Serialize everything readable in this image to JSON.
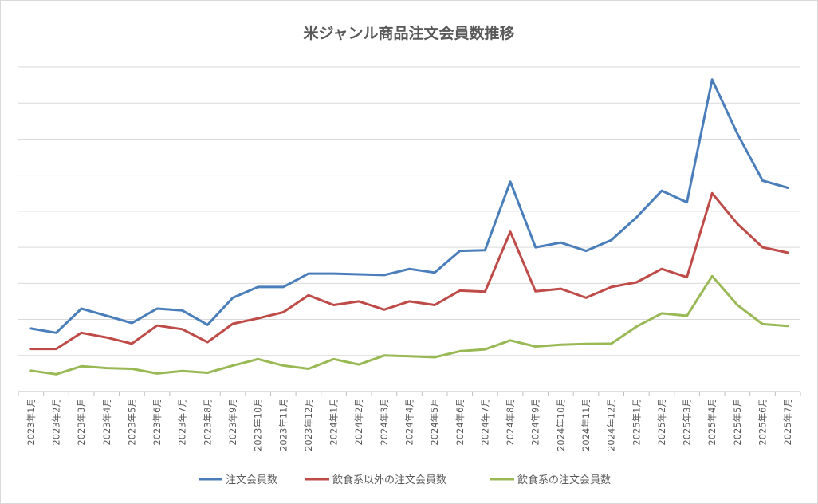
{
  "chart_data": {
    "type": "line",
    "title": "米ジャンル商品注文会員数推移",
    "xlabel": "",
    "ylabel": "",
    "categories": [
      "2023年1月",
      "2023年2月",
      "2023年3月",
      "2023年4月",
      "2023年5月",
      "2023年6月",
      "2023年7月",
      "2023年8月",
      "2023年9月",
      "2023年10月",
      "2023年11月",
      "2023年12月",
      "2024年1月",
      "2024年2月",
      "2024年3月",
      "2024年4月",
      "2024年5月",
      "2024年6月",
      "2024年7月",
      "2024年8月",
      "2024年9月",
      "2024年10月",
      "2024年11月",
      "2024年12月",
      "2025年1月",
      "2025年2月",
      "2025年3月",
      "2025年4月",
      "2025年5月",
      "2025年6月",
      "2025年7月"
    ],
    "ylim": [
      0,
      9
    ],
    "y_gridlines": [
      0,
      1,
      2,
      3,
      4,
      5,
      6,
      7,
      8,
      9
    ],
    "y_tick_labels_shown": false,
    "grid": true,
    "legend_position": "bottom",
    "series": [
      {
        "name": "注文会員数",
        "color": "#4a7ebb",
        "values": [
          1.75,
          1.63,
          2.3,
          2.1,
          1.9,
          2.3,
          2.25,
          1.85,
          2.6,
          2.9,
          2.9,
          3.27,
          3.27,
          3.25,
          3.23,
          3.4,
          3.3,
          3.9,
          3.92,
          5.82,
          4.0,
          4.13,
          3.9,
          4.2,
          4.83,
          5.57,
          5.25,
          8.65,
          7.15,
          5.85,
          5.65
        ]
      },
      {
        "name": "飲食系以外の注文会員数",
        "color": "#be4b48",
        "values": [
          1.18,
          1.18,
          1.63,
          1.5,
          1.33,
          1.83,
          1.73,
          1.37,
          1.88,
          2.03,
          2.2,
          2.67,
          2.4,
          2.5,
          2.27,
          2.5,
          2.4,
          2.8,
          2.77,
          4.43,
          2.78,
          2.85,
          2.6,
          2.9,
          3.03,
          3.4,
          3.17,
          5.5,
          4.65,
          4.0,
          3.85
        ]
      },
      {
        "name": "飲食系の注文会員数",
        "color": "#98b954",
        "values": [
          0.58,
          0.48,
          0.7,
          0.65,
          0.63,
          0.5,
          0.57,
          0.52,
          0.72,
          0.9,
          0.72,
          0.63,
          0.9,
          0.75,
          1.0,
          0.98,
          0.95,
          1.12,
          1.17,
          1.42,
          1.25,
          1.3,
          1.32,
          1.33,
          1.8,
          2.17,
          2.1,
          3.2,
          2.4,
          1.87,
          1.82
        ]
      }
    ]
  }
}
